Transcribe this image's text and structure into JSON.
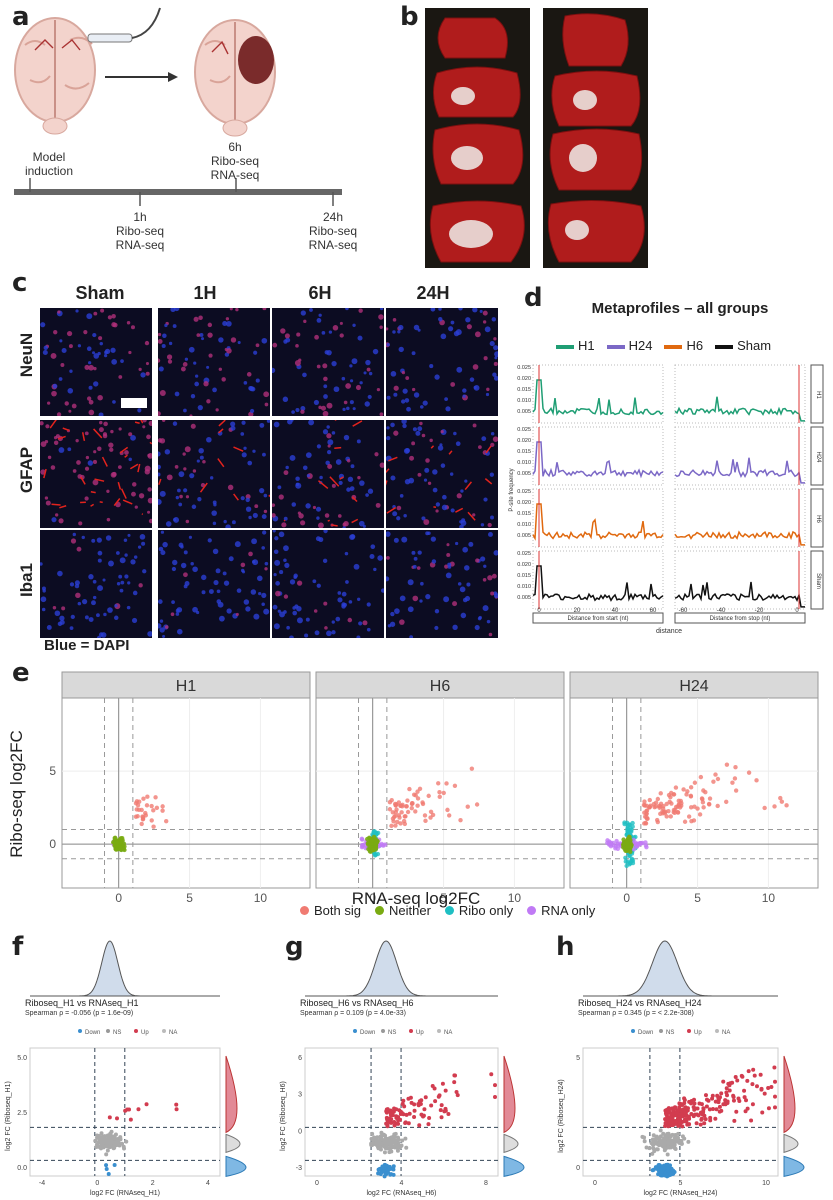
{
  "panels": {
    "a": "a",
    "b": "b",
    "c": "c",
    "d": "d",
    "e": "e",
    "f": "f",
    "g": "g",
    "h": "h"
  },
  "panel_a": {
    "top_label": [
      "6h",
      "Ribo-seq",
      "RNA-seq"
    ],
    "model_label": [
      "Model",
      "induction"
    ],
    "h1_label": [
      "1h",
      "Ribo-seq",
      "RNA-seq"
    ],
    "h24_label": [
      "24h",
      "Ribo-seq",
      "RNA-seq"
    ]
  },
  "panel_c": {
    "columns": [
      "Sham",
      "1H",
      "6H",
      "24H"
    ],
    "rows": [
      "NeuN",
      "GFAP",
      "Iba1"
    ],
    "footnote": "Blue = DAPI"
  },
  "panel_d": {
    "title": "Metaprofiles – all groups",
    "legend": [
      {
        "name": "H1",
        "color": "#1f9e74"
      },
      {
        "name": "H24",
        "color": "#7b68c6"
      },
      {
        "name": "H6",
        "color": "#e0690f"
      },
      {
        "name": "Sham",
        "color": "#111111"
      }
    ],
    "ylabel": "P-site frequency",
    "yticks": [
      "0.025",
      "0.020",
      "0.015",
      "0.010",
      "0.005"
    ],
    "xlabel_left": "Distance from start (nt)",
    "xlabel_right": "Distance from stop (nt)",
    "xlabel": "distance",
    "xticks_left": [
      "0",
      "20",
      "40",
      "60"
    ],
    "xticks_right": [
      "-60",
      "-40",
      "-20",
      "0"
    ],
    "strips": [
      "H1",
      "H24",
      "H6",
      "Sham"
    ]
  },
  "panel_e": {
    "facets": [
      "H1",
      "H6",
      "H24"
    ],
    "xlabel": "RNA-seq log2FC",
    "ylabel": "Ribo-seq log2FC",
    "xticks": [
      "0",
      "5",
      "10"
    ],
    "yticks": [
      "5",
      "0"
    ],
    "legend": [
      {
        "name": "Both sig",
        "color": "#f07b72"
      },
      {
        "name": "Neither",
        "color": "#7aab12"
      },
      {
        "name": "Ribo only",
        "color": "#1fbfc3"
      },
      {
        "name": "RNA only",
        "color": "#c07af5"
      }
    ]
  },
  "panel_f": {
    "title": "Riboseq_H1  vs  RNAseq_H1",
    "stat": "Spearman ρ = -0.056  (p = 1.6e-09)",
    "legend": [
      "Down",
      "NS",
      "Up",
      "NA"
    ],
    "xlabel": "log2 FC (RNAseq_H1)",
    "ylabel": "log2 FC (Riboseq_H1)",
    "xticks": [
      "-4",
      "0",
      "2",
      "4"
    ],
    "yticks": [
      "5.0",
      "2.5",
      "0.0"
    ]
  },
  "panel_g": {
    "title": "Riboseq_H6  vs  RNAseq_H6",
    "stat": "Spearman ρ = 0.109  (p = 4.0e-33)",
    "legend": [
      "Down",
      "NS",
      "Up",
      "NA"
    ],
    "xlabel": "log2 FC (RNAseq_H6)",
    "ylabel": "log2 FC (Riboseq_H6)",
    "xticks": [
      "0",
      "4",
      "8"
    ],
    "yticks": [
      "6",
      "3",
      "0",
      "-3"
    ]
  },
  "panel_h": {
    "title": "Riboseq_H24  vs  RNAseq_H24",
    "stat": "Spearman ρ = 0.345  (p = < 2.2e-308)",
    "legend": [
      "Down",
      "NS",
      "Up",
      "NA"
    ],
    "xlabel": "log2 FC (RNAseq_H24)",
    "ylabel": "log2 FC (Riboseq_H24)",
    "xticks": [
      "0",
      "5",
      "10"
    ],
    "yticks": [
      "5",
      "0"
    ]
  }
}
